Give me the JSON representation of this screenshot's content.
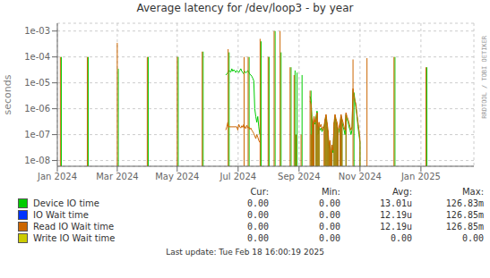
{
  "chart_data": {
    "type": "line",
    "title": "Average latency for /dev/loop3 - by year",
    "ylabel": "seconds",
    "log": "y",
    "grid": true,
    "xlim": [
      1704067200,
      1740096000
    ],
    "xticks": [
      {
        "value": 1704067200,
        "label": "Jan 2024"
      },
      {
        "value": 1709251200,
        "label": "Mar 2024"
      },
      {
        "value": 1714435200,
        "label": "May 2024"
      },
      {
        "value": 1719705600,
        "label": "Jul 2024"
      },
      {
        "value": 1724976000,
        "label": "Sep 2024"
      },
      {
        "value": 1730246400,
        "label": "Nov 2024"
      },
      {
        "value": 1735516800,
        "label": "Jan 2025"
      }
    ],
    "ylim": [
      6e-09,
      0.002
    ],
    "yticks": [
      {
        "value": 1e-08,
        "label": "1e-08"
      },
      {
        "value": 1e-07,
        "label": "1e-07"
      },
      {
        "value": 1e-06,
        "label": "1e-06"
      },
      {
        "value": 1e-05,
        "label": "1e-05"
      },
      {
        "value": 0.0001,
        "label": "1e-04"
      },
      {
        "value": 0.001,
        "label": "1e-03"
      }
    ],
    "legend_headers": [
      "Cur:",
      "Min:",
      "Avg:",
      "Max:"
    ],
    "series": [
      {
        "name": "Device IO time",
        "color": "#00cc00",
        "stats": [
          "0.00",
          "0.00",
          "13.01u",
          "126.83m"
        ],
        "parts": [
          {
            "type": "spike",
            "x": [
              1704412800,
              1706745600,
              1709337600,
              1711929600,
              1714521600,
              1716681600,
              1718928000,
              1720656000,
              1721692800,
              1722384000,
              1722902400,
              1723420800,
              1724284800,
              1724630400,
              1724803200,
              1725235200,
              1726012800,
              1726099200,
              1726185600,
              1726272000,
              1726444800,
              1726531200,
              1726617600,
              1726704000,
              1727222400,
              1727308800,
              1727395200,
              1727481600,
              1727568000,
              1727654400,
              1727740800,
              1727827200,
              1728000000,
              1728086400,
              1728172800,
              1728259200,
              1728345600,
              1728518400,
              1728604800,
              1728691200,
              1729036800,
              1729728000,
              1730246400,
              1733270400,
              1736035200
            ],
            "values": [
              0.0001,
              0.0001,
              3.5e-05,
              0.0001,
              0.0001,
              0.00016,
              0.00015,
              0.0001,
              0.0004,
              0.0001,
              0.001,
              0.00015,
              4e-05,
              3e-05,
              2.5e-05,
              2e-05,
              5e-06,
              4e-07,
              2e-07,
              3e-07,
              5e-07,
              8e-07,
              1e-07,
              2e-07,
              3e-07,
              5e-07,
              2e-07,
              1e-07,
              3e-08,
              5e-08,
              1e-08,
              3e-08,
              2e-07,
              5e-07,
              3e-07,
              2e-07,
              1e-07,
              2e-07,
              5e-07,
              3e-07,
              6e-07,
              4e-06,
              5e-08,
              0.0001,
              4e-05
            ]
          },
          {
            "type": "line",
            "x": [
              1718640000,
              1718726400,
              1718812800,
              1718899200,
              1718985600,
              1719072000,
              1719158400,
              1719244800,
              1719331200,
              1719417600,
              1719504000,
              1719590400,
              1719676800,
              1719763200,
              1719849600,
              1719936000,
              1720022400,
              1720108800,
              1720195200,
              1720281600,
              1720368000,
              1720454400,
              1720540800,
              1720627200,
              1720713600,
              1720800000,
              1720886400,
              1720972800,
              1721059200,
              1721145600,
              1721232000,
              1721318400,
              1721404800,
              1721491200,
              1721577600
            ],
            "values": [
              2e-05,
              2.2e-05,
              2.5e-05,
              3e-05,
              2.8e-05,
              2.6e-05,
              3.5e-05,
              2.8e-05,
              3.2e-05,
              2.9e-05,
              2.5e-05,
              3e-05,
              2.8e-05,
              2.5e-05,
              3e-05,
              3.5e-05,
              2.8e-05,
              2.5e-05,
              2.2e-05,
              2.8e-05,
              2.4e-05,
              2.6e-05,
              3e-05,
              2.5e-05,
              2.2e-05,
              2e-05,
              1.8e-05,
              1.5e-05,
              1.2e-05,
              1e-06,
              5e-07,
              3e-07,
              5e-07,
              2e-07,
              1e-07
            ]
          },
          {
            "type": "line",
            "x": [
              1725926400,
              1726012800,
              1726099200,
              1726185600,
              1726272000,
              1726358400,
              1726444800,
              1726531200,
              1726617600,
              1726704000,
              1726790400,
              1726876800,
              1726963200,
              1727049600,
              1727136000,
              1727222400,
              1727308800,
              1727395200,
              1727481600,
              1727568000,
              1727654400,
              1727740800,
              1727827200,
              1727913600,
              1728000000,
              1728086400,
              1728172800,
              1728259200,
              1728345600,
              1728432000,
              1728518400,
              1728604800,
              1728691200,
              1728777600,
              1728864000,
              1728950400,
              1729036800,
              1729123200,
              1729209600,
              1729296000,
              1729382400,
              1729468800,
              1729555200,
              1729641600,
              1729728000,
              1729814400,
              1729900800,
              1729987200,
              1730073600,
              1730160000,
              1730246400
            ],
            "values": [
              3e-06,
              2e-06,
              4e-07,
              2e-07,
              3e-07,
              2.5e-07,
              5e-07,
              8e-07,
              1e-07,
              2e-07,
              1.5e-07,
              1.8e-07,
              1.3e-07,
              1.6e-07,
              2e-07,
              3e-07,
              5e-07,
              2e-07,
              1e-07,
              3e-08,
              5e-08,
              1e-08,
              3e-08,
              2e-08,
              2e-07,
              5e-07,
              3e-07,
              2e-07,
              1e-07,
              1.5e-07,
              2e-07,
              5e-07,
              3e-07,
              2e-07,
              1.5e-07,
              1e-07,
              6e-07,
              4e-07,
              3e-07,
              2e-07,
              1.5e-07,
              1e-07,
              1.5e-07,
              5e-06,
              4e-06,
              2e-06,
              1e-06,
              5e-07,
              2e-07,
              1e-07,
              5e-08
            ]
          }
        ]
      },
      {
        "name": "IO Wait time",
        "color": "#0033ff",
        "stats": [
          "0.00",
          "0.00",
          "12.19u",
          "126.85m"
        ],
        "parts": []
      },
      {
        "name": "Read IO Wait time",
        "color": "#cc6600",
        "stats": [
          "0.00",
          "0.00",
          "12.19u",
          "126.85m"
        ],
        "parts": [
          {
            "type": "spike",
            "x": [
              1704326400,
              1706659200,
              1709251200,
              1711843200,
              1714435200,
              1716595200,
              1718841600,
              1720224000,
              1720569600,
              1721606400,
              1722297600,
              1722816000,
              1723334400,
              1724198400,
              1724544000,
              1724716800,
              1725148800,
              1725926400,
              1726012800,
              1726099200,
              1726185600,
              1726272000,
              1726444800,
              1726531200,
              1726617600,
              1726704000,
              1727136000,
              1727222400,
              1727308800,
              1727395200,
              1727481600,
              1727568000,
              1727654400,
              1727740800,
              1727827200,
              1728000000,
              1728086400,
              1728172800,
              1728259200,
              1728345600,
              1728518400,
              1728604800,
              1728691200,
              1729036800,
              1729641600,
              1730246400,
              1730851200,
              1733184000,
              1735948800
            ],
            "values": [
              0.0001,
              0.0001,
              0.00035,
              0.0001,
              0.0001,
              0.00016,
              0.0002,
              0.0001,
              0.0001,
              0.0005,
              0.0001,
              0.001,
              0.001,
              4e-05,
              2e-05,
              1e-07,
              1e-07,
              5e-06,
              1e-07,
              2e-07,
              3e-07,
              5e-07,
              4e-07,
              7e-07,
              1.5e-07,
              3e-07,
              2e-07,
              4e-07,
              6e-07,
              3e-07,
              1.5e-07,
              4e-08,
              6e-08,
              1.5e-08,
              4e-08,
              3e-07,
              6e-07,
              4e-07,
              3e-07,
              1.5e-07,
              3e-07,
              6e-07,
              4e-07,
              7e-07,
              8e-05,
              6e-08,
              9e-05,
              0.0001,
              4e-05
            ]
          },
          {
            "type": "line",
            "x": [
              1718640000,
              1718726400,
              1718812800,
              1718899200,
              1719590400,
              1719676800,
              1719763200,
              1719849600,
              1719936000,
              1720022400,
              1720108800,
              1720195200,
              1720281600,
              1720368000,
              1720454400,
              1720540800,
              1720627200,
              1720713600,
              1720800000,
              1720886400,
              1720972800,
              1721059200,
              1721145600,
              1721232000,
              1721318400,
              1721404800,
              1721491200,
              1721577600
            ],
            "values": [
              1.5e-07,
              2e-07,
              3e-07,
              2e-07,
              2e-07,
              1.5e-07,
              2.5e-07,
              2e-07,
              1.8e-07,
              2.2e-07,
              1.9e-07,
              2.5e-07,
              2e-07,
              1.7e-07,
              2.3e-07,
              1.8e-07,
              2e-07,
              1.6e-07,
              1.8e-07,
              1.5e-07,
              1.3e-07,
              1.1e-07,
              9e-08,
              7e-08,
              1e-07,
              8e-08,
              6e-08,
              5e-08
            ]
          },
          {
            "type": "line",
            "x": [
              1725926400,
              1726012800,
              1726099200,
              1726185600,
              1726272000,
              1726358400,
              1726444800,
              1726531200,
              1726617600,
              1726704000,
              1726790400,
              1726876800,
              1726963200,
              1727049600,
              1727136000,
              1727222400,
              1727308800,
              1727395200,
              1727481600,
              1727568000,
              1727654400,
              1727740800,
              1727827200,
              1727913600,
              1728000000,
              1728086400,
              1728172800,
              1728259200,
              1728345600,
              1728432000,
              1728518400,
              1728604800,
              1728691200,
              1728777600,
              1728864000,
              1728950400,
              1729036800,
              1729123200,
              1729209600,
              1729296000,
              1729382400,
              1729468800,
              1729555200,
              1729641600,
              1729728000,
              1729814400,
              1729900800,
              1729987200,
              1730073600,
              1730160000,
              1730246400
            ],
            "values": [
              2e-06,
              1.5e-06,
              2e-07,
              3e-07,
              5e-07,
              3e-07,
              4e-07,
              7e-07,
              1.5e-07,
              3e-07,
              2e-07,
              2.5e-07,
              1.5e-07,
              2e-07,
              2e-07,
              4e-07,
              6e-07,
              3e-07,
              1.5e-07,
              4e-08,
              6e-08,
              1.5e-08,
              4e-08,
              2.5e-08,
              3e-07,
              6e-07,
              4e-07,
              3e-07,
              1.5e-07,
              2e-07,
              3e-07,
              6e-07,
              4e-07,
              3e-07,
              2e-07,
              1.5e-07,
              7e-07,
              5e-07,
              4e-07,
              3e-07,
              2e-07,
              1.5e-07,
              2e-07,
              6e-06,
              3e-06,
              2e-06,
              1.5e-06,
              6e-07,
              3e-07,
              1.5e-07,
              6e-08
            ]
          }
        ]
      },
      {
        "name": "Write IO Wait time",
        "color": "#cccc00",
        "stats": [
          "0.00",
          "0.00",
          "0.00",
          "0.00"
        ],
        "parts": []
      }
    ],
    "annotations": [
      "Last update: Tue Feb 18 16:00:19 2025",
      "RRDTOOL / TOBI OETIKER"
    ]
  }
}
